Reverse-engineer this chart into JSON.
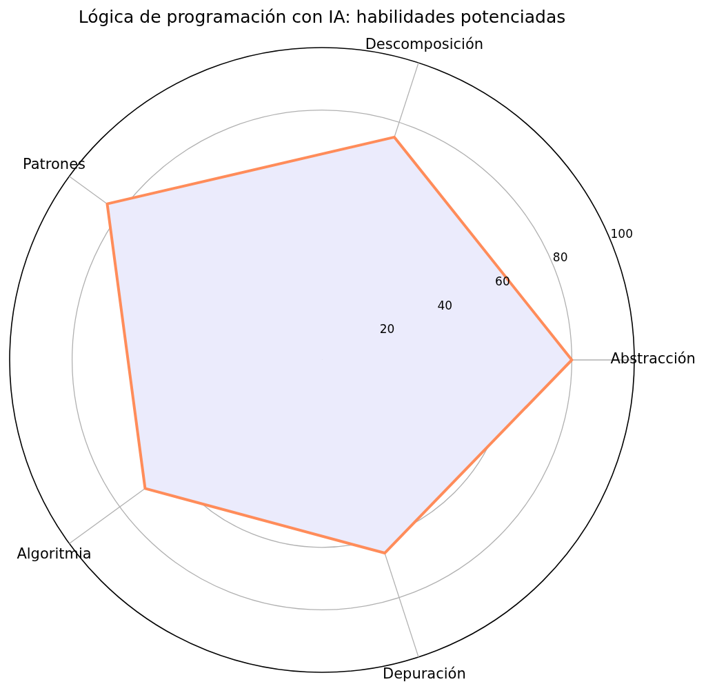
{
  "chart_data": {
    "type": "radar",
    "title": "Lógica de programación con IA: habilidades potenciadas",
    "categories": [
      "Descomposición",
      "Abstracción",
      "Depuración",
      "Algoritmia",
      "Patrones"
    ],
    "series": [
      {
        "color": "#ff8c5a",
        "values": [
          75,
          80,
          65,
          70,
          85
        ]
      }
    ],
    "ylim": [
      0,
      100
    ],
    "yticks": [
      20,
      40,
      60,
      80,
      100
    ],
    "grid": true,
    "legend": false
  }
}
